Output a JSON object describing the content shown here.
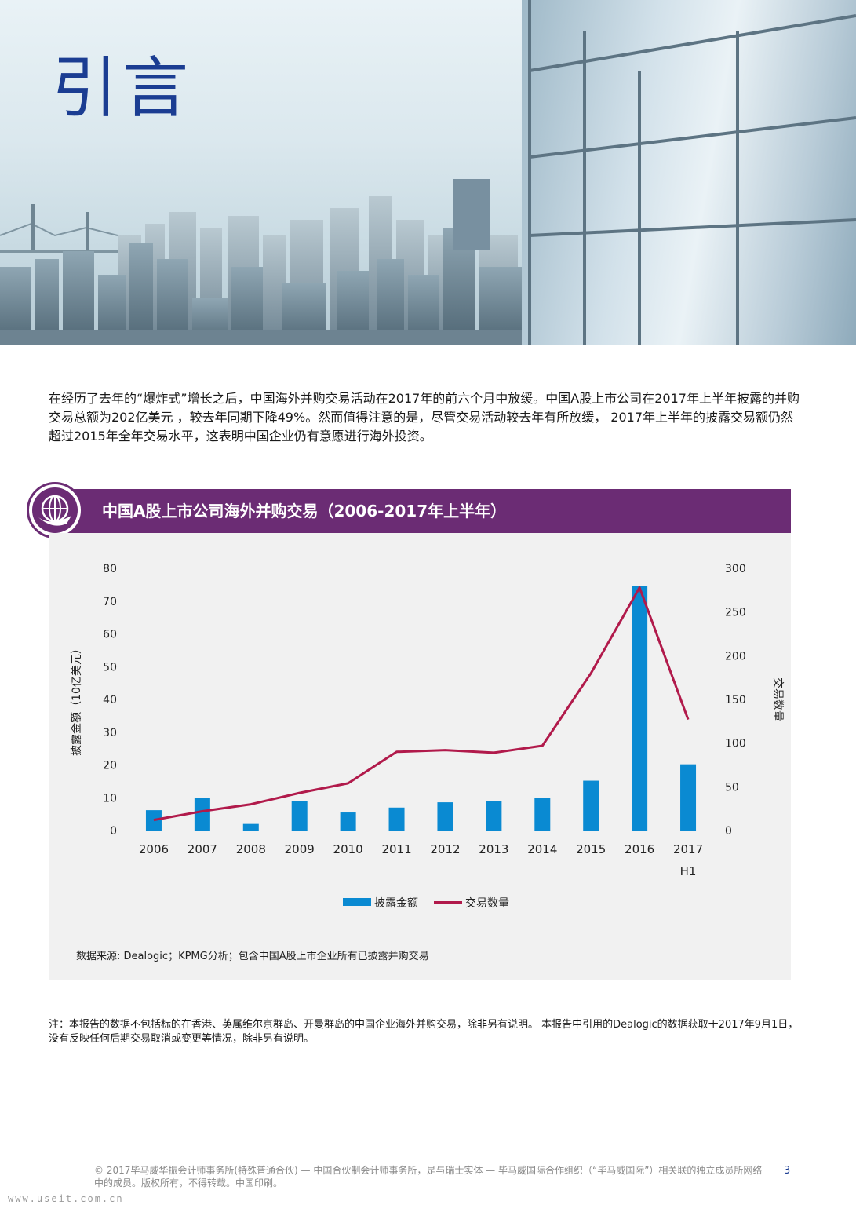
{
  "hero": {
    "title": "引言"
  },
  "intro": {
    "text": "在经历了去年的“爆炸式”增长之后，中国海外并购交易活动在2017年的前六个月中放缓。中国A股上市公司在2017年上半年披露的并购交易总额为202亿美元 ，较去年同期下降49%。然而值得注意的是，尽管交易活动较去年有所放缓， 2017年上半年的披露交易额仍然超过2015年全年交易水平，这表明中国企业仍有意愿进行海外投资。"
  },
  "colors": {
    "header": "#6b2c74",
    "bar": "#0a8ad2",
    "line": "#b11a4b",
    "title": "#1b3d92"
  },
  "chart_data": {
    "type": "bar",
    "title": "中国A股上市公司海外并购交易（2006-2017年上半年）",
    "categories": [
      "2006",
      "2007",
      "2008",
      "2009",
      "2010",
      "2011",
      "2012",
      "2013",
      "2014",
      "2015",
      "2016",
      "2017"
    ],
    "category_sublabels": [
      "",
      "",
      "",
      "",
      "",
      "",
      "",
      "",
      "",
      "",
      "",
      "H1"
    ],
    "ylabel": "披露金额（10亿美元）",
    "y2label": "交易数量",
    "ylim": [
      0,
      80
    ],
    "y2lim": [
      0,
      300
    ],
    "yticks": [
      0,
      10,
      20,
      30,
      40,
      50,
      60,
      70,
      80
    ],
    "y2ticks": [
      0,
      50,
      100,
      150,
      200,
      250,
      300
    ],
    "grid": false,
    "series": [
      {
        "name": "披露金额",
        "type": "bar",
        "axis": "left",
        "values": [
          6.2,
          9.9,
          2.0,
          9.1,
          5.5,
          7.0,
          8.6,
          8.9,
          10.0,
          15.2,
          74.5,
          20.2
        ]
      },
      {
        "name": "交易数量",
        "type": "line",
        "axis": "right",
        "values": [
          12,
          22,
          30,
          43,
          54,
          90,
          92,
          89,
          97,
          180,
          278,
          127
        ]
      }
    ],
    "legend": [
      "披露金额",
      "交易数量"
    ]
  },
  "source": "数据来源: Dealogic；KPMG分析；包含中国A股上市企业所有已披露并购交易",
  "note": "注：本报告的数据不包括标的在香港、英属维尔京群岛、开曼群岛的中国企业海外并购交易，除非另有说明。 本报告中引用的Dealogic的数据获取于2017年9月1日，没有反映任何后期交易取消或变更等情况，除非另有说明。",
  "footer": {
    "copyright": "© 2017毕马威华振会计师事务所(特殊普通合伙) — 中国合伙制会计师事务所，是与瑞士实体 — 毕马威国际合作组织（“毕马威国际”）相关联的独立成员所网络中的成员。版权所有，不得转载。中国印刷。",
    "page": "3"
  },
  "watermark": "www.useit.com.cn"
}
